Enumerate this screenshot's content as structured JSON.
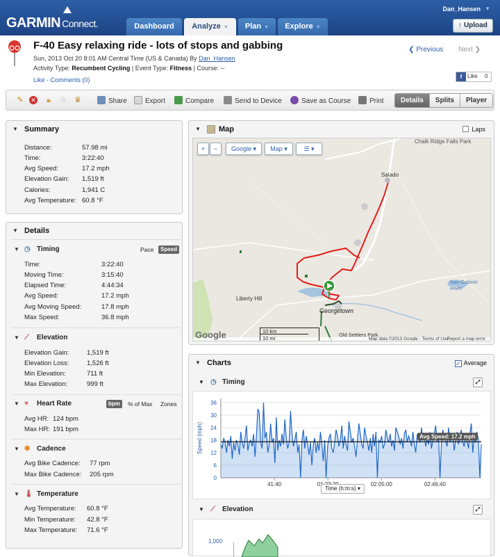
{
  "app": {
    "logo": "GARMIN",
    "logo_sub": "Connect.",
    "user": "Dan_Hansen",
    "upload": "Upload"
  },
  "nav": {
    "tabs": [
      {
        "label": "Dashboard"
      },
      {
        "label": "Analyze"
      },
      {
        "label": "Plan"
      },
      {
        "label": "Explore"
      }
    ]
  },
  "activity": {
    "title": "F-40 Easy relaxing ride - lots of stops and gabbing",
    "date": "Sun, 2013 Oct 20 8:01 AM Central Time (US & Canada) By",
    "author": "Dan_Hansen",
    "type_label": "Activity Type:",
    "type": "Recumbent Cycling",
    "event_label": "| Event Type:",
    "event": "Fitness",
    "course_label": "| Course: --",
    "like": "Like",
    "dash": " - ",
    "comments": "Comments (0)",
    "prev": "Previous",
    "next": "Next",
    "fb_like": "Like",
    "fb_count": "0"
  },
  "toolbar": {
    "share": "Share",
    "export": "Export",
    "compare": "Compare",
    "send": "Send to Device",
    "save_course": "Save as Course",
    "print": "Print",
    "views": [
      "Details",
      "Splits",
      "Player"
    ]
  },
  "summary": {
    "title": "Summary",
    "rows": [
      {
        "label": "Distance:",
        "value": "57.98 mi"
      },
      {
        "label": "Time:",
        "value": "3:22:40"
      },
      {
        "label": "Avg Speed:",
        "value": "17.2 mph"
      },
      {
        "label": "Elevation Gain:",
        "value": "1,519 ft"
      },
      {
        "label": "Calories:",
        "value": "1,941 C"
      },
      {
        "label": "Avg Temperature:",
        "value": "60.8 °F"
      }
    ]
  },
  "details": {
    "title": "Details",
    "timing": {
      "title": "Timing",
      "pace": "Pace",
      "speed": "Speed",
      "rows": [
        {
          "label": "Time:",
          "value": "3:22:40"
        },
        {
          "label": "Moving Time:",
          "value": "3:15:40"
        },
        {
          "label": "Elapsed Time:",
          "value": "4:44:34"
        },
        {
          "label": "Avg Speed:",
          "value": "17.2 mph"
        },
        {
          "label": "Avg Moving Speed:",
          "value": "17.8 mph"
        },
        {
          "label": "Max Speed:",
          "value": "36.8 mph"
        }
      ]
    },
    "elevation": {
      "title": "Elevation",
      "rows": [
        {
          "label": "Elevation Gain:",
          "value": "1,519 ft"
        },
        {
          "label": "Elevation Loss:",
          "value": "1,526 ft"
        },
        {
          "label": "Min Elevation:",
          "value": "711 ft"
        },
        {
          "label": "Max Elevation:",
          "value": "999 ft"
        }
      ]
    },
    "heart": {
      "title": "Heart Rate",
      "bpm": "bpm",
      "pct": "% of Max",
      "zones": "Zones",
      "rows": [
        {
          "label": "Avg HR:",
          "value": "124 bpm"
        },
        {
          "label": "Max HR:",
          "value": "191 bpm"
        }
      ]
    },
    "cadence": {
      "title": "Cadence",
      "rows": [
        {
          "label": "Avg Bike Cadence:",
          "value": "77 rpm"
        },
        {
          "label": "Max Bike Cadence:",
          "value": "205 rpm"
        }
      ]
    },
    "temperature": {
      "title": "Temperature",
      "rows": [
        {
          "label": "Avg Temperature:",
          "value": "60.8 °F"
        },
        {
          "label": "Min Temperature:",
          "value": "42.8 °F"
        },
        {
          "label": "Max Temperature:",
          "value": "71.6 °F"
        }
      ]
    }
  },
  "map": {
    "title": "Map",
    "laps": "Laps",
    "provider": "Google",
    "maptype": "Map",
    "places": [
      "Chalk Ridge Falls Park",
      "Salado",
      "Liberty Hill",
      "Georgetown",
      "San Gabriel River",
      "Old Settlers Park"
    ],
    "scale_km": "10 km",
    "scale_mi": "10 mi",
    "attribution": "Map data ©2013 Google",
    "terms": "Terms of Use",
    "report": "Report a map error",
    "google": "Google"
  },
  "charts": {
    "title": "Charts",
    "average": "Average",
    "timing": {
      "title": "Timing",
      "avg_label": "Avg Speed: 17.2 mph",
      "x_select": "Time (h:m:s)"
    },
    "elevation": {
      "title": "Elevation",
      "ytick": "1,000"
    }
  },
  "chart_data": [
    {
      "type": "line",
      "title": "Timing",
      "ylabel": "Speed (mph)",
      "xlabel": "Time (h:m:s)",
      "ylim": [
        0,
        38
      ],
      "yticks": [
        0,
        6,
        12,
        18,
        24,
        30,
        36
      ],
      "xticks": [
        "41:40",
        "01:23:20",
        "02:05:00",
        "02:46:40"
      ],
      "xtick_positions_s": [
        2500,
        5000,
        7500,
        10000
      ],
      "average": 17.2,
      "series": [
        {
          "values": [
            16,
            14,
            19,
            17,
            12,
            18,
            15,
            20,
            9,
            17,
            13,
            18,
            16,
            11,
            22,
            17,
            14,
            19,
            25,
            13,
            17,
            18,
            15,
            21,
            10,
            20,
            33,
            31,
            17,
            14,
            36,
            19,
            22,
            12,
            16,
            26,
            17,
            19,
            7,
            29,
            13,
            18,
            15,
            21,
            16,
            28,
            19,
            14,
            17,
            32,
            21,
            15,
            18,
            22,
            12,
            16,
            0,
            18,
            23,
            14,
            20,
            16,
            11,
            17,
            6,
            16,
            19,
            12,
            17,
            13,
            22,
            16,
            8,
            18,
            0,
            15,
            19,
            21,
            14,
            12,
            17,
            23,
            20,
            15,
            18,
            25,
            14,
            20,
            16,
            13,
            27,
            22,
            17,
            19,
            15,
            10,
            18,
            26,
            21,
            16,
            14,
            24,
            20,
            17,
            13,
            19,
            12,
            21,
            15,
            22,
            0,
            18,
            17,
            20,
            14,
            16,
            23,
            19,
            17,
            21,
            15,
            18,
            13,
            24,
            22,
            20,
            16,
            19,
            14,
            21,
            23,
            17,
            20,
            18,
            15,
            22,
            16,
            12,
            21,
            19,
            17,
            24,
            18,
            20,
            15,
            19,
            16,
            22,
            14,
            18,
            21,
            25,
            17,
            20,
            0,
            16,
            23,
            19,
            18,
            15,
            24,
            17,
            20,
            21,
            13,
            18,
            22,
            16,
            19,
            23,
            17,
            15,
            20,
            18,
            14,
            21,
            26,
            12,
            19,
            17,
            22,
            18,
            0,
            16
          ]
        }
      ]
    }
  ]
}
